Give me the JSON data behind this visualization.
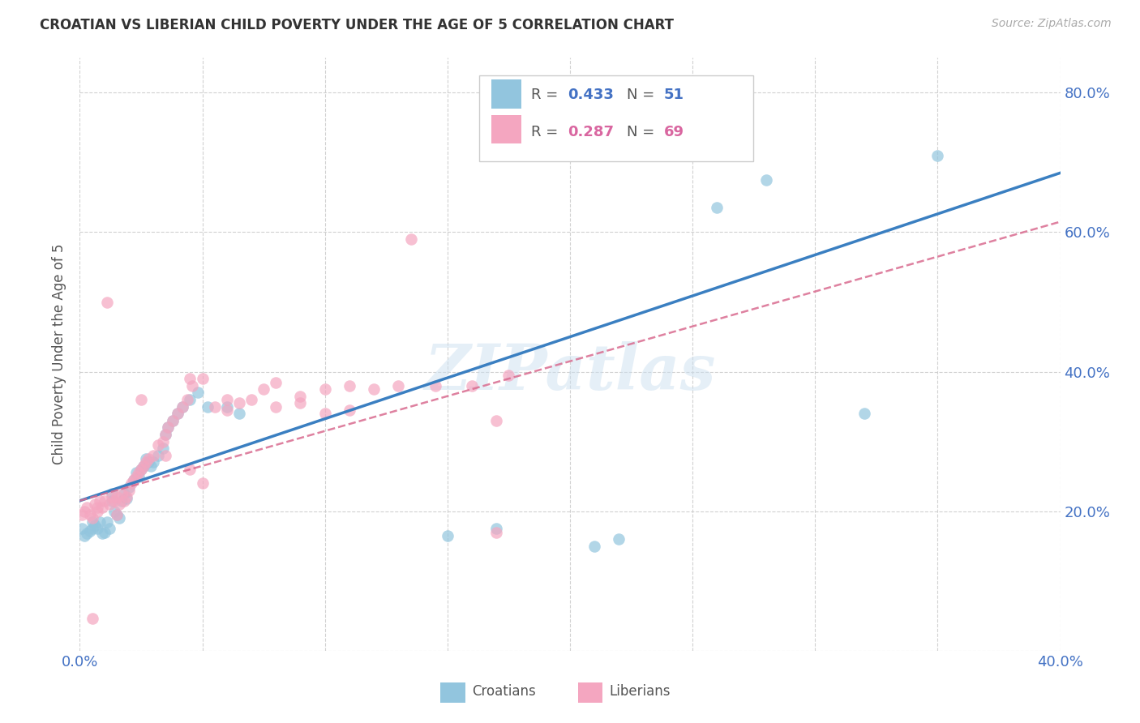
{
  "title": "CROATIAN VS LIBERIAN CHILD POVERTY UNDER THE AGE OF 5 CORRELATION CHART",
  "source": "Source: ZipAtlas.com",
  "ylabel": "Child Poverty Under the Age of 5",
  "xlim": [
    0.0,
    0.4
  ],
  "ylim": [
    0.0,
    0.85
  ],
  "xticks": [
    0.0,
    0.05,
    0.1,
    0.15,
    0.2,
    0.25,
    0.3,
    0.35,
    0.4
  ],
  "yticks": [
    0.0,
    0.2,
    0.4,
    0.6,
    0.8
  ],
  "legend_r1": "0.433",
  "legend_n1": "51",
  "legend_r2": "0.287",
  "legend_n2": "69",
  "watermark": "ZIPatlas",
  "croatian_color": "#92c5de",
  "liberian_color": "#f4a6c0",
  "line_color_croatian": "#3a7fc1",
  "line_color_liberian": "#d96b8f",
  "blue_line_x0": 0.0,
  "blue_line_y0": 0.215,
  "blue_line_x1": 0.4,
  "blue_line_y1": 0.685,
  "pink_line_x0": 0.0,
  "pink_line_y0": 0.215,
  "pink_line_x1": 0.4,
  "pink_line_y1": 0.615,
  "croatian_x": [
    0.001,
    0.002,
    0.003,
    0.004,
    0.005,
    0.005,
    0.006,
    0.007,
    0.008,
    0.009,
    0.01,
    0.011,
    0.012,
    0.013,
    0.013,
    0.014,
    0.015,
    0.016,
    0.017,
    0.018,
    0.019,
    0.02,
    0.022,
    0.023,
    0.024,
    0.025,
    0.026,
    0.027,
    0.028,
    0.029,
    0.03,
    0.032,
    0.034,
    0.035,
    0.036,
    0.038,
    0.04,
    0.042,
    0.045,
    0.048,
    0.052,
    0.06,
    0.065,
    0.15,
    0.17,
    0.21,
    0.22,
    0.26,
    0.28,
    0.32,
    0.35
  ],
  "croatian_y": [
    0.175,
    0.165,
    0.168,
    0.172,
    0.185,
    0.175,
    0.18,
    0.175,
    0.185,
    0.168,
    0.17,
    0.185,
    0.175,
    0.225,
    0.215,
    0.2,
    0.195,
    0.19,
    0.215,
    0.225,
    0.218,
    0.235,
    0.245,
    0.255,
    0.25,
    0.26,
    0.265,
    0.275,
    0.27,
    0.265,
    0.27,
    0.28,
    0.29,
    0.31,
    0.32,
    0.33,
    0.34,
    0.35,
    0.36,
    0.37,
    0.35,
    0.35,
    0.34,
    0.165,
    0.175,
    0.15,
    0.16,
    0.635,
    0.675,
    0.34,
    0.71
  ],
  "liberian_x": [
    0.001,
    0.002,
    0.003,
    0.004,
    0.005,
    0.006,
    0.007,
    0.007,
    0.008,
    0.009,
    0.01,
    0.011,
    0.012,
    0.013,
    0.014,
    0.015,
    0.015,
    0.016,
    0.017,
    0.018,
    0.019,
    0.02,
    0.021,
    0.022,
    0.023,
    0.024,
    0.025,
    0.026,
    0.027,
    0.028,
    0.03,
    0.032,
    0.034,
    0.035,
    0.036,
    0.038,
    0.04,
    0.042,
    0.044,
    0.046,
    0.05,
    0.055,
    0.06,
    0.065,
    0.07,
    0.075,
    0.08,
    0.09,
    0.1,
    0.11,
    0.12,
    0.13,
    0.145,
    0.16,
    0.175,
    0.005,
    0.135,
    0.045,
    0.06,
    0.08,
    0.09,
    0.1,
    0.11,
    0.17,
    0.035,
    0.045,
    0.05,
    0.17,
    0.025
  ],
  "liberian_y": [
    0.195,
    0.2,
    0.205,
    0.195,
    0.19,
    0.21,
    0.205,
    0.2,
    0.215,
    0.205,
    0.215,
    0.5,
    0.21,
    0.22,
    0.215,
    0.195,
    0.22,
    0.21,
    0.225,
    0.215,
    0.22,
    0.23,
    0.24,
    0.245,
    0.25,
    0.255,
    0.26,
    0.265,
    0.27,
    0.275,
    0.28,
    0.295,
    0.3,
    0.31,
    0.32,
    0.33,
    0.34,
    0.35,
    0.36,
    0.38,
    0.39,
    0.35,
    0.345,
    0.355,
    0.36,
    0.375,
    0.385,
    0.365,
    0.375,
    0.38,
    0.375,
    0.38,
    0.38,
    0.38,
    0.395,
    0.046,
    0.59,
    0.39,
    0.36,
    0.35,
    0.355,
    0.34,
    0.345,
    0.33,
    0.28,
    0.26,
    0.24,
    0.17,
    0.36
  ]
}
